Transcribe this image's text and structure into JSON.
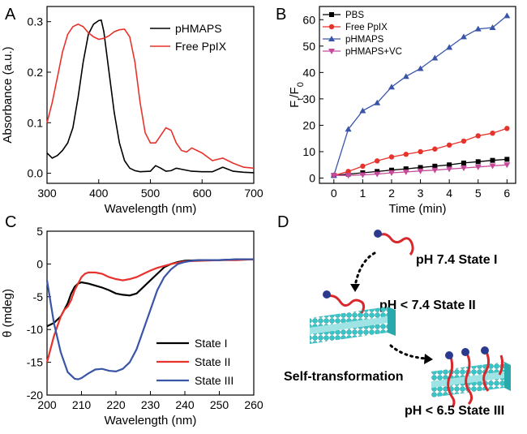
{
  "panels": {
    "A": {
      "letter": "A"
    },
    "B": {
      "letter": "B"
    },
    "C": {
      "letter": "C"
    },
    "D": {
      "letter": "D"
    }
  },
  "chart_data": [
    {
      "panel": "A",
      "type": "line",
      "xlabel": "Wavelength (nm)",
      "ylabel": "Absorbance (a.u.)",
      "xlim": [
        300,
        700
      ],
      "ylim": [
        -0.02,
        0.33
      ],
      "xticks": [
        300,
        400,
        500,
        600,
        700
      ],
      "yticks": [
        0.0,
        0.1,
        0.2,
        0.3
      ],
      "ytick_labels": [
        "0.0",
        "0.1",
        "0.2",
        "0.3"
      ],
      "legend_position": "top-right",
      "series": [
        {
          "name": "pHMAPS",
          "color": "#000000",
          "x": [
            300,
            310,
            320,
            330,
            340,
            350,
            360,
            370,
            380,
            390,
            400,
            405,
            410,
            420,
            430,
            440,
            450,
            460,
            470,
            480,
            500,
            510,
            520,
            530,
            540,
            550,
            560,
            580,
            600,
            620,
            640,
            660,
            680,
            700
          ],
          "y": [
            0.04,
            0.03,
            0.035,
            0.045,
            0.06,
            0.09,
            0.15,
            0.22,
            0.275,
            0.295,
            0.302,
            0.303,
            0.28,
            0.2,
            0.12,
            0.06,
            0.025,
            0.01,
            0.005,
            0.003,
            0.004,
            0.015,
            0.01,
            0.004,
            0.005,
            0.01,
            0.008,
            0.004,
            0.003,
            0.003,
            0.012,
            0.004,
            0.002,
            0.001
          ]
        },
        {
          "name": "Free PpIX",
          "color": "#e8322c",
          "x": [
            300,
            310,
            320,
            330,
            340,
            350,
            360,
            370,
            380,
            390,
            400,
            410,
            420,
            430,
            440,
            450,
            460,
            470,
            480,
            490,
            500,
            510,
            520,
            530,
            540,
            550,
            560,
            570,
            580,
            600,
            620,
            640,
            660,
            680,
            700
          ],
          "y": [
            0.1,
            0.14,
            0.19,
            0.24,
            0.275,
            0.29,
            0.295,
            0.29,
            0.278,
            0.27,
            0.265,
            0.267,
            0.272,
            0.28,
            0.284,
            0.285,
            0.27,
            0.22,
            0.14,
            0.08,
            0.06,
            0.06,
            0.075,
            0.09,
            0.085,
            0.06,
            0.045,
            0.042,
            0.05,
            0.04,
            0.025,
            0.03,
            0.02,
            0.012,
            0.01
          ]
        }
      ]
    },
    {
      "panel": "B",
      "type": "line",
      "xlabel": "Time (min)",
      "ylabel_main": "F",
      "ylabel_sub1": "t",
      "ylabel_mid": "/F",
      "ylabel_sub2": "0",
      "xlim": [
        -0.5,
        6.3
      ],
      "ylim": [
        -2,
        65
      ],
      "xticks": [
        0,
        1,
        2,
        3,
        4,
        5,
        6
      ],
      "yticks": [
        0,
        10,
        20,
        30,
        40,
        50,
        60
      ],
      "legend_position": "top-left",
      "x": [
        0,
        0.5,
        1,
        1.5,
        2,
        2.5,
        3,
        3.5,
        4,
        4.5,
        5,
        5.5,
        6
      ],
      "series": [
        {
          "name": "PBS",
          "color": "#000000",
          "marker": "square",
          "values": [
            1.0,
            1.5,
            2.0,
            2.5,
            3.0,
            3.5,
            4.0,
            4.5,
            5.0,
            5.7,
            6.2,
            6.7,
            7.1
          ]
        },
        {
          "name": "Free PpIX",
          "color": "#e8322c",
          "marker": "circle",
          "values": [
            1.0,
            2.5,
            4.5,
            6.5,
            8.0,
            9.0,
            10.0,
            11.0,
            12.5,
            14.0,
            16.0,
            17.0,
            18.8
          ]
        },
        {
          "name": "pHMAPS",
          "color": "#3a55a8",
          "marker": "triangle-up",
          "values": [
            1.0,
            18.5,
            25.5,
            28.5,
            34.5,
            38.5,
            41.5,
            45.5,
            49.5,
            53.5,
            56.5,
            57.0,
            61.5
          ]
        },
        {
          "name": "pHMAPS+VC",
          "color": "#c54a9a",
          "marker": "triangle-down",
          "values": [
            1.0,
            1.0,
            1.2,
            1.5,
            2.0,
            2.3,
            2.7,
            3.0,
            3.4,
            3.8,
            4.2,
            4.6,
            5.0
          ]
        }
      ]
    },
    {
      "panel": "C",
      "type": "line",
      "xlabel": "Wavelength (nm)",
      "ylabel": "θ (mdeg)",
      "xlim": [
        200,
        260
      ],
      "ylim": [
        -20,
        5
      ],
      "xticks": [
        200,
        210,
        220,
        230,
        240,
        250,
        260
      ],
      "yticks": [
        -20,
        -15,
        -10,
        -5,
        0,
        5
      ],
      "legend_position": "bottom-right",
      "series": [
        {
          "name": "State I",
          "color": "#000000",
          "x": [
            200,
            202,
            204,
            206,
            207,
            208,
            209,
            210,
            212,
            214,
            216,
            218,
            220,
            222,
            224,
            226,
            228,
            230,
            232,
            234,
            236,
            238,
            240,
            245,
            250,
            255,
            260
          ],
          "y": [
            -9.5,
            -9.0,
            -8.0,
            -6.0,
            -4.5,
            -3.5,
            -3.0,
            -2.8,
            -3.0,
            -3.3,
            -3.6,
            -4.0,
            -4.5,
            -4.7,
            -4.8,
            -4.5,
            -3.5,
            -2.5,
            -1.5,
            -0.5,
            0.0,
            0.3,
            0.5,
            0.6,
            0.6,
            0.7,
            0.7
          ]
        },
        {
          "name": "State II",
          "color": "#e8322c",
          "x": [
            200,
            202,
            204,
            205,
            206,
            207,
            208,
            209,
            210,
            211,
            212,
            214,
            216,
            218,
            220,
            222,
            224,
            226,
            228,
            230,
            232,
            234,
            236,
            238,
            240,
            245,
            250,
            255,
            260
          ],
          "y": [
            -15.0,
            -11.0,
            -8.0,
            -7.0,
            -6.5,
            -5.5,
            -4.0,
            -3.0,
            -2.0,
            -1.5,
            -1.3,
            -1.3,
            -1.5,
            -2.0,
            -2.3,
            -2.5,
            -2.3,
            -2.0,
            -1.5,
            -1.0,
            -0.6,
            -0.3,
            0.0,
            0.2,
            0.4,
            0.5,
            0.6,
            0.6,
            0.7
          ]
        },
        {
          "name": "State III",
          "color": "#3a55a8",
          "x": [
            200,
            202,
            204,
            206,
            208,
            209,
            210,
            212,
            214,
            216,
            218,
            220,
            222,
            224,
            226,
            228,
            230,
            232,
            234,
            236,
            238,
            240,
            242,
            245,
            250,
            255,
            260
          ],
          "y": [
            -2.5,
            -9.0,
            -13.5,
            -16.5,
            -17.5,
            -17.6,
            -17.4,
            -16.7,
            -16.1,
            -16.0,
            -16.3,
            -16.4,
            -16.0,
            -15.0,
            -13.0,
            -10.0,
            -7.0,
            -4.0,
            -2.0,
            -0.8,
            0.0,
            0.3,
            0.5,
            0.6,
            0.6,
            0.7,
            0.7
          ]
        }
      ]
    }
  ],
  "diagram": {
    "labels": {
      "state1": "pH  7.4 State I",
      "state2": "pH < 7.4 State II",
      "state3": "pH < 6.5 State III",
      "transform": "Self-transformation"
    },
    "colors": {
      "membrane": "#37c5c8",
      "membrane_edge": "#1a8a8e",
      "peptide": "#d8282c",
      "molecule": "#2b3a8f"
    }
  }
}
